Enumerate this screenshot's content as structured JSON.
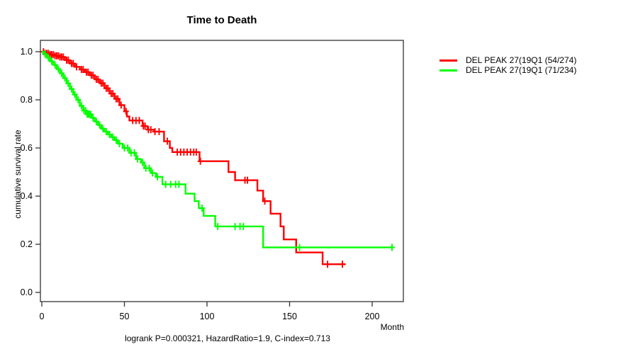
{
  "title": "Time to Death",
  "annotation": "logrank P=0.000321, HazardRatio=1.9, C-index=0.713",
  "axes": {
    "x_label": "Month",
    "y_label": "cumulative survival rate"
  },
  "legend": {
    "items": [
      {
        "label": "DEL PEAK 27(19Q1 (54/274)",
        "color": "#ff0000"
      },
      {
        "label": "DEL PEAK 27(19Q1 (71/234)",
        "color": "#00ff00"
      }
    ]
  },
  "chart_data": {
    "type": "line",
    "style": "kaplan-meier-step",
    "title": "Time to Death",
    "xlabel": "Month",
    "ylabel": "cumulative survival rate",
    "xlim": [
      0,
      220
    ],
    "ylim": [
      0.0,
      1.0
    ],
    "xticks": [
      0,
      50,
      100,
      150,
      200
    ],
    "yticks": [
      0.0,
      0.2,
      0.4,
      0.6,
      0.8,
      1.0
    ],
    "grid": false,
    "legend_position": "right-outside",
    "footnote": "logrank P=0.000321, HazardRatio=1.9, C-index=0.713",
    "series": [
      {
        "name": "DEL PEAK 27(19Q1 (54/274)",
        "color": "#ff0000",
        "end_time": 184,
        "steps": [
          [
            0,
            1.0
          ],
          [
            2,
            0.993
          ],
          [
            5,
            0.988
          ],
          [
            8,
            0.983
          ],
          [
            11,
            0.978
          ],
          [
            14,
            0.965
          ],
          [
            17,
            0.951
          ],
          [
            20,
            0.937
          ],
          [
            23,
            0.926
          ],
          [
            26,
            0.915
          ],
          [
            29,
            0.902
          ],
          [
            32,
            0.885
          ],
          [
            35,
            0.869
          ],
          [
            38,
            0.848
          ],
          [
            41,
            0.826
          ],
          [
            44,
            0.804
          ],
          [
            47,
            0.778
          ],
          [
            50,
            0.752
          ],
          [
            51.5,
            0.731
          ],
          [
            53,
            0.714
          ],
          [
            61,
            0.691
          ],
          [
            64,
            0.676
          ],
          [
            68,
            0.668
          ],
          [
            74,
            0.628
          ],
          [
            77.5,
            0.6
          ],
          [
            79,
            0.583
          ],
          [
            95.5,
            0.545
          ],
          [
            113,
            0.5
          ],
          [
            117,
            0.466
          ],
          [
            130.5,
            0.423
          ],
          [
            134,
            0.379
          ],
          [
            138.5,
            0.327
          ],
          [
            144.5,
            0.274
          ],
          [
            146.5,
            0.22
          ],
          [
            154,
            0.166
          ],
          [
            170,
            0.117
          ]
        ],
        "censor_times": [
          1,
          2,
          3,
          4,
          5,
          6,
          7,
          8,
          9,
          10,
          11,
          12,
          13,
          15,
          16,
          18,
          19,
          21,
          24,
          25,
          27,
          28,
          30,
          31,
          33,
          34,
          36,
          37,
          39,
          40,
          42,
          43,
          45,
          46,
          48,
          51,
          55,
          57,
          59,
          61.5,
          62.5,
          64.5,
          66,
          68.5,
          71,
          76,
          82,
          84,
          86,
          88,
          90,
          92,
          93.5,
          96,
          123,
          124.5,
          135,
          173,
          182
        ]
      },
      {
        "name": "DEL PEAK 27(19Q1 (71/234)",
        "color": "#00ff00",
        "end_time": 212,
        "steps": [
          [
            0,
            1.0
          ],
          [
            1,
            0.99
          ],
          [
            3,
            0.975
          ],
          [
            5,
            0.96
          ],
          [
            7,
            0.945
          ],
          [
            9,
            0.928
          ],
          [
            11,
            0.91
          ],
          [
            13,
            0.89
          ],
          [
            15,
            0.868
          ],
          [
            17,
            0.845
          ],
          [
            19,
            0.822
          ],
          [
            21,
            0.8
          ],
          [
            23,
            0.775
          ],
          [
            25,
            0.755
          ],
          [
            27,
            0.74
          ],
          [
            30,
            0.725
          ],
          [
            32,
            0.71
          ],
          [
            34,
            0.695
          ],
          [
            36,
            0.68
          ],
          [
            38,
            0.668
          ],
          [
            40,
            0.656
          ],
          [
            42,
            0.645
          ],
          [
            44,
            0.633
          ],
          [
            46,
            0.618
          ],
          [
            49,
            0.6
          ],
          [
            53,
            0.58
          ],
          [
            57,
            0.554
          ],
          [
            60,
            0.54
          ],
          [
            62,
            0.516
          ],
          [
            66,
            0.496
          ],
          [
            69,
            0.48
          ],
          [
            73,
            0.449
          ],
          [
            87,
            0.41
          ],
          [
            92.5,
            0.379
          ],
          [
            95,
            0.35
          ],
          [
            98,
            0.318
          ],
          [
            105,
            0.274
          ],
          [
            134,
            0.187
          ]
        ],
        "censor_times": [
          2,
          4,
          6,
          8,
          10,
          12,
          14,
          16,
          18,
          20,
          22,
          24,
          25.5,
          26.5,
          27.5,
          28,
          28.5,
          29,
          29.5,
          31,
          33,
          35,
          37,
          39,
          41,
          43,
          45,
          47,
          50,
          52,
          54,
          56,
          58,
          61,
          63,
          65,
          67,
          70,
          75,
          78,
          81,
          83,
          97,
          106.5,
          117,
          120,
          122,
          156,
          212
        ]
      }
    ]
  }
}
